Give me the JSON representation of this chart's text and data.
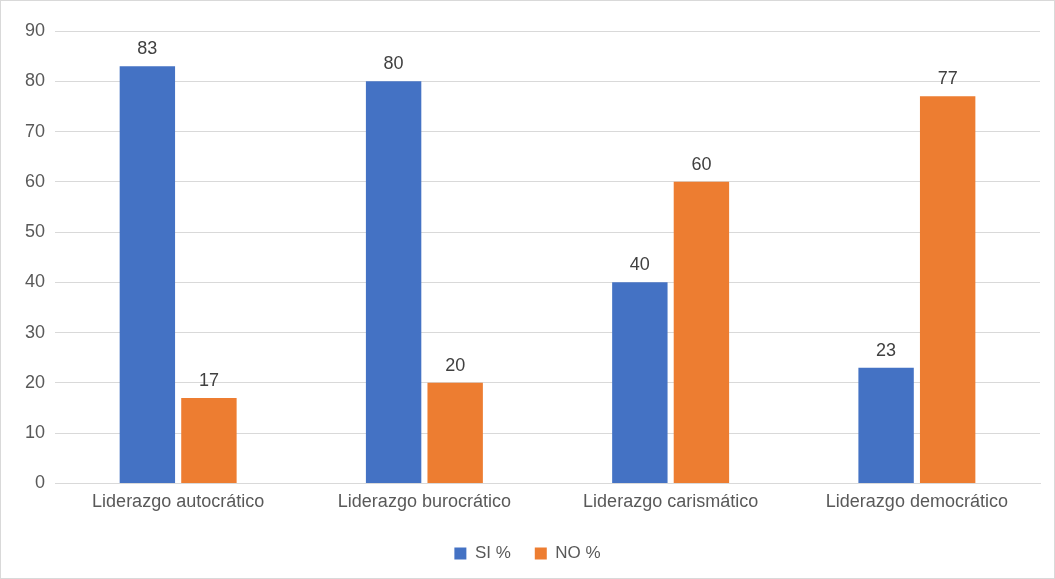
{
  "chart_data": {
    "type": "bar",
    "categories": [
      "Liderazgo autocrático",
      "Liderazgo burocrático",
      "Liderazgo carismático",
      "Liderazgo democrático"
    ],
    "series": [
      {
        "name": "SI %",
        "color": "#4472c4",
        "values": [
          83,
          80,
          40,
          23
        ]
      },
      {
        "name": "NO %",
        "color": "#ed7d31",
        "values": [
          17,
          20,
          60,
          77
        ]
      }
    ],
    "ylim": [
      0,
      90
    ],
    "yticks": [
      0,
      10,
      20,
      30,
      40,
      50,
      60,
      70,
      80,
      90
    ],
    "grid": "y",
    "legend": "bottom",
    "data_labels": true
  }
}
